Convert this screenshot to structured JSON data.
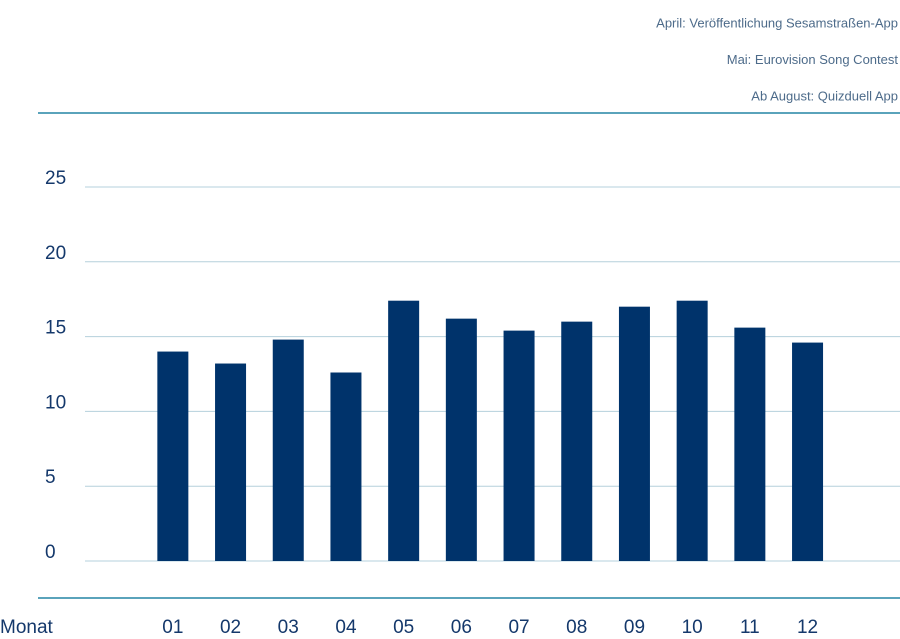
{
  "chart_data": {
    "type": "bar",
    "annotations": [
      "April: Veröffentlichung Sesamstraßen-App",
      "Mai: Eurovision Song Contest",
      "Ab August: Quizduell App"
    ],
    "xlabel": "Monat",
    "categories": [
      "01",
      "02",
      "03",
      "04",
      "05",
      "06",
      "07",
      "08",
      "09",
      "10",
      "11",
      "12"
    ],
    "values": [
      14.0,
      13.2,
      14.8,
      12.6,
      17.4,
      16.2,
      15.4,
      16.0,
      17.0,
      17.4,
      15.6,
      14.6
    ],
    "color": "#00336b",
    "ylim": [
      0,
      25
    ],
    "yticks": [
      0,
      5,
      10,
      15,
      20,
      25
    ],
    "grid": true
  }
}
